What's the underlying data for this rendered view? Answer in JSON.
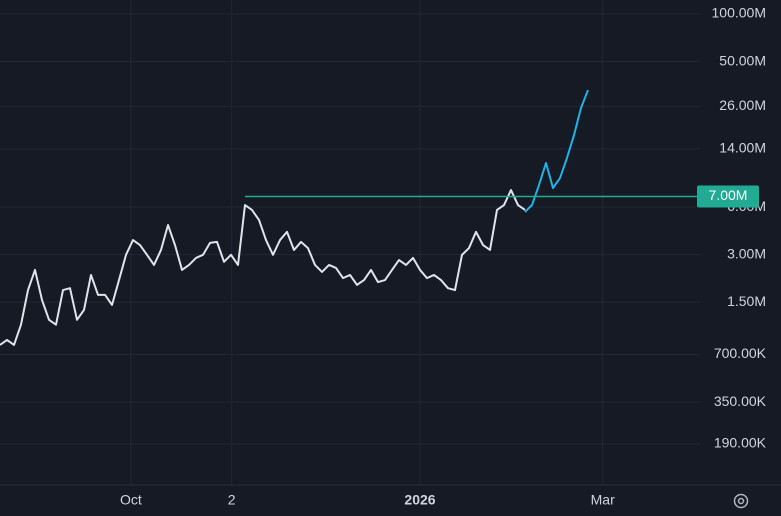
{
  "chart_data": {
    "type": "line",
    "log_scale": true,
    "grid": true,
    "xlim": [
      0,
      100
    ],
    "xticks": [
      {
        "value": 18.7,
        "label": "Oct"
      },
      {
        "value": 33.1,
        "label": "2"
      },
      {
        "value": 60,
        "label": "2026"
      },
      {
        "value": 86.1,
        "label": "Mar"
      }
    ],
    "ylim": [
      104500,
      122600000
    ],
    "yticks": [
      {
        "value": 100000000,
        "label": "100.00M"
      },
      {
        "value": 50000000,
        "label": "50.00M"
      },
      {
        "value": 26000000,
        "label": "26.00M"
      },
      {
        "value": 14000000,
        "label": "14.00M"
      },
      {
        "value": 6000000,
        "label": "6.00M"
      },
      {
        "value": 3000000,
        "label": "3.00M"
      },
      {
        "value": 1500000,
        "label": "1.50M"
      },
      {
        "value": 700000,
        "label": "700.00K"
      },
      {
        "value": 350000,
        "label": "350.00K"
      },
      {
        "value": 190000,
        "label": "190.00K"
      }
    ],
    "level": {
      "value": 7000000,
      "label": "7.00M",
      "color": "#22ab94"
    },
    "series": [
      {
        "color": "#e0e3eb",
        "values": [
          804000,
          865000,
          804000,
          1080000,
          1790000,
          2400000,
          1550000,
          1160000,
          1080000,
          1790000,
          1840000,
          1160000,
          1340000,
          2230000,
          1670000,
          1670000,
          1440000,
          2070000,
          2990000,
          3710000,
          3450000,
          2990000,
          2580000,
          3210000,
          4620000,
          3450000,
          2400000,
          2580000,
          2860000,
          2990000,
          3560000,
          3610000,
          2700000,
          2990000,
          2580000,
          6180000,
          5750000,
          4970000,
          3710000,
          2990000,
          3710000,
          4180000,
          3210000,
          3610000,
          3300000,
          2580000,
          2330000,
          2580000,
          2470000,
          2130000,
          2230000,
          1930000,
          2070000,
          2400000,
          2010000,
          2070000,
          2400000,
          2770000,
          2580000,
          2860000,
          2400000,
          2130000,
          2230000,
          2070000,
          1840000,
          1790000,
          2990000,
          3300000,
          4180000,
          3450000,
          3210000,
          5750000,
          6180000,
          7690000,
          6180000,
          5750000,
          null,
          null,
          null,
          null,
          null,
          null,
          null,
          null,
          null
        ]
      },
      {
        "color": "#1fb3e6",
        "values": [
          null,
          null,
          null,
          null,
          null,
          null,
          null,
          null,
          null,
          null,
          null,
          null,
          null,
          null,
          null,
          null,
          null,
          null,
          null,
          null,
          null,
          null,
          null,
          null,
          null,
          null,
          null,
          null,
          null,
          null,
          null,
          null,
          null,
          null,
          null,
          null,
          null,
          null,
          null,
          null,
          null,
          null,
          null,
          null,
          null,
          null,
          null,
          null,
          null,
          null,
          null,
          null,
          null,
          null,
          null,
          null,
          null,
          null,
          null,
          null,
          null,
          null,
          null,
          null,
          null,
          null,
          null,
          null,
          null,
          null,
          null,
          null,
          null,
          null,
          null,
          5590000,
          6180000,
          8270000,
          11400000,
          7920000,
          9160000,
          12300000,
          17100000,
          25400000,
          33000000
        ]
      }
    ]
  }
}
